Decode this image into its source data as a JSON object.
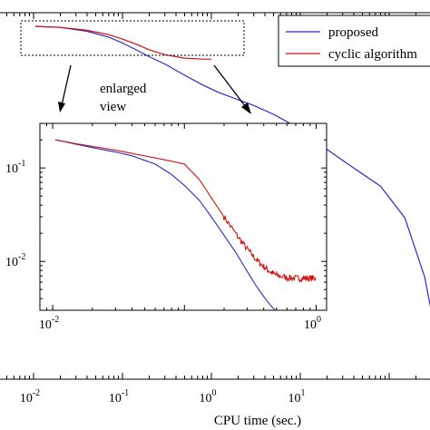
{
  "chart_data": [
    {
      "type": "line",
      "panel": "main",
      "title": "",
      "xlabel": "CPU time (sec.)",
      "ylabel": "",
      "xscale": "log",
      "xlim": [
        0.004,
        400
      ],
      "ylim": [
        0.25,
        1
      ],
      "grid": false,
      "legend": {
        "position": "top-right",
        "entries": [
          "proposed",
          "cyclic algorithm"
        ]
      },
      "xticks": [
        {
          "base": "10",
          "exp": "-2",
          "value": 0.01
        },
        {
          "base": "10",
          "exp": "-1",
          "value": 0.1
        },
        {
          "base": "10",
          "exp": "0",
          "value": 1
        },
        {
          "base": "10",
          "exp": "1",
          "value": 10
        }
      ],
      "series": [
        {
          "name": "proposed",
          "color": "#2b2bcc",
          "x": [
            0.0105,
            0.02,
            0.04,
            0.07,
            0.1,
            0.15,
            0.2,
            0.3,
            0.5,
            0.8,
            1.2,
            2,
            3,
            5,
            10,
            20,
            40,
            80,
            150,
            250,
            400
          ],
          "y": [
            0.972,
            0.97,
            0.962,
            0.95,
            0.938,
            0.922,
            0.91,
            0.895,
            0.872,
            0.852,
            0.837,
            0.822,
            0.81,
            0.792,
            0.762,
            0.72,
            0.682,
            0.645,
            0.58,
            0.46,
            0.27
          ]
        },
        {
          "name": "cyclic algorithm",
          "color": "#d01010",
          "x": [
            0.0105,
            0.02,
            0.04,
            0.07,
            0.1,
            0.15,
            0.2,
            0.3,
            0.5,
            0.8,
            1.0
          ],
          "y": [
            0.972,
            0.97,
            0.964,
            0.955,
            0.946,
            0.934,
            0.924,
            0.914,
            0.907,
            0.905,
            0.905
          ]
        }
      ]
    },
    {
      "type": "line",
      "panel": "inset",
      "title": "",
      "xlabel": "",
      "ylabel": "",
      "xscale": "log",
      "yscale": "log",
      "xlim": [
        0.008,
        1.2
      ],
      "ylim": [
        0.003,
        0.3
      ],
      "grid": false,
      "xticks": [
        {
          "base": "10",
          "exp": "-2",
          "value": 0.01
        },
        {
          "base": "10",
          "exp": "0",
          "value": 1
        }
      ],
      "yticks": [
        {
          "base": "10",
          "exp": "-1",
          "value": 0.1
        },
        {
          "base": "10",
          "exp": "-2",
          "value": 0.01
        }
      ],
      "series": [
        {
          "name": "proposed",
          "color": "#2b2bcc",
          "x": [
            0.0105,
            0.015,
            0.02,
            0.03,
            0.04,
            0.06,
            0.08,
            0.1,
            0.13,
            0.16,
            0.2,
            0.25,
            0.3,
            0.35,
            0.4,
            0.45,
            0.5,
            0.55
          ],
          "y": [
            0.2,
            0.18,
            0.165,
            0.148,
            0.135,
            0.11,
            0.085,
            0.065,
            0.045,
            0.03,
            0.019,
            0.012,
            0.0078,
            0.0055,
            0.0042,
            0.0034,
            0.0029,
            0.0027
          ]
        },
        {
          "name": "cyclic algorithm",
          "color": "#d01010",
          "x": [
            0.0105,
            0.015,
            0.02,
            0.03,
            0.04,
            0.06,
            0.08,
            0.1,
            0.13,
            0.16,
            0.2,
            0.25,
            0.3,
            0.35,
            0.4,
            0.45,
            0.5,
            0.6,
            0.7,
            0.8,
            0.9,
            1.0
          ],
          "y": [
            0.2,
            0.182,
            0.17,
            0.155,
            0.143,
            0.128,
            0.118,
            0.11,
            0.075,
            0.048,
            0.03,
            0.019,
            0.0135,
            0.0105,
            0.0088,
            0.0077,
            0.0071,
            0.0067,
            0.0066,
            0.0066,
            0.0066,
            0.0066
          ]
        }
      ]
    }
  ],
  "annotation": {
    "line1": "enlarged",
    "line2": "view"
  }
}
